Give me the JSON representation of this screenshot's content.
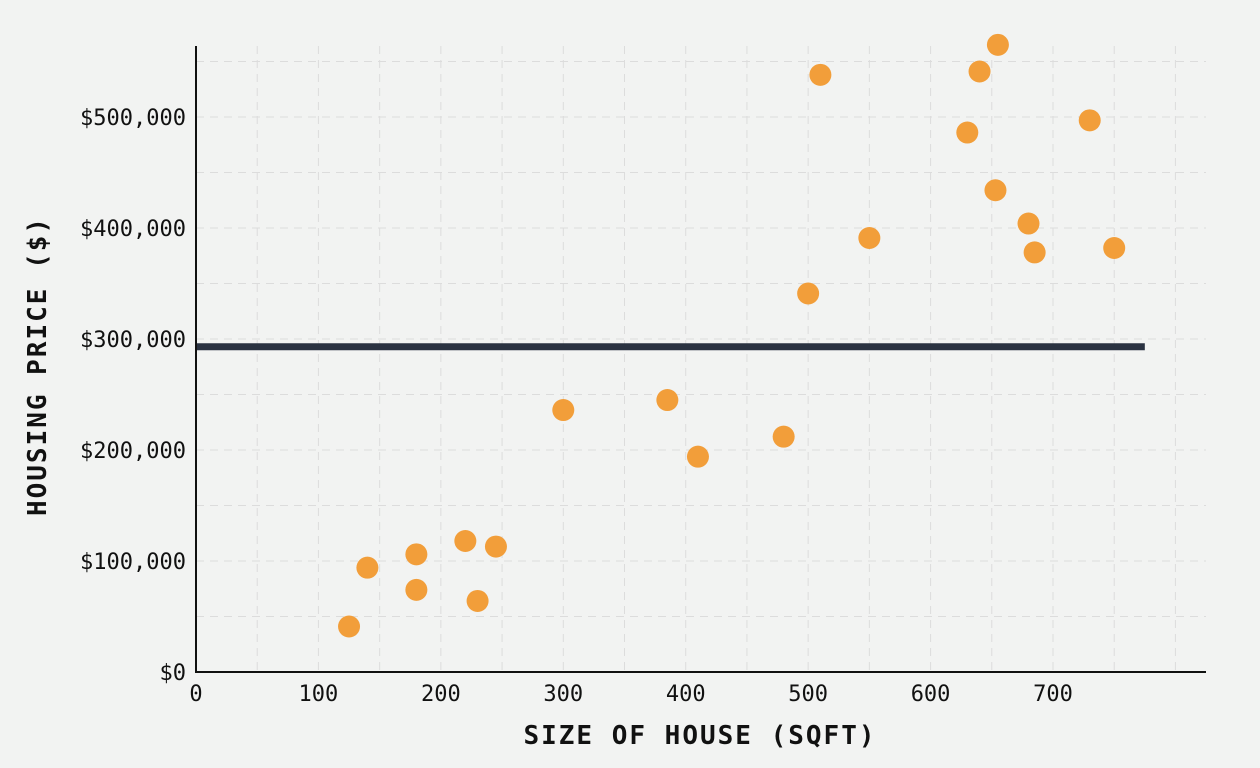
{
  "chart_data": {
    "type": "scatter",
    "title": "",
    "xlabel": "SIZE OF HOUSE (SQFT)",
    "ylabel": "HOUSING PRICE ($)",
    "xlim": [
      0,
      825
    ],
    "ylim": [
      0,
      565000
    ],
    "x_ticks": [
      0,
      100,
      200,
      300,
      400,
      500,
      600,
      700
    ],
    "y_ticks": [
      0,
      100000,
      200000,
      300000,
      400000,
      500000
    ],
    "x_tick_labels": [
      "0",
      "100",
      "200",
      "300",
      "400",
      "500",
      "600",
      "700"
    ],
    "y_tick_labels": [
      "$0",
      "$100,000",
      "$200,000",
      "$300,000",
      "$400,000",
      "$500,000"
    ],
    "grid": true,
    "point_color": "#f29e3a",
    "line_color": "#2a3241",
    "points": [
      {
        "x": 125,
        "y": 41000
      },
      {
        "x": 140,
        "y": 94000
      },
      {
        "x": 180,
        "y": 106000
      },
      {
        "x": 180,
        "y": 74000
      },
      {
        "x": 220,
        "y": 118000
      },
      {
        "x": 230,
        "y": 64000
      },
      {
        "x": 245,
        "y": 113000
      },
      {
        "x": 300,
        "y": 236000
      },
      {
        "x": 385,
        "y": 245000
      },
      {
        "x": 410,
        "y": 194000
      },
      {
        "x": 480,
        "y": 212000
      },
      {
        "x": 500,
        "y": 341000
      },
      {
        "x": 510,
        "y": 538000
      },
      {
        "x": 550,
        "y": 391000
      },
      {
        "x": 630,
        "y": 486000
      },
      {
        "x": 640,
        "y": 541000
      },
      {
        "x": 653,
        "y": 434000
      },
      {
        "x": 655,
        "y": 565000
      },
      {
        "x": 680,
        "y": 404000
      },
      {
        "x": 685,
        "y": 378000
      },
      {
        "x": 730,
        "y": 497000
      },
      {
        "x": 750,
        "y": 382000
      }
    ],
    "hline": {
      "y": 293000,
      "x_start": 0,
      "x_end": 775
    }
  }
}
